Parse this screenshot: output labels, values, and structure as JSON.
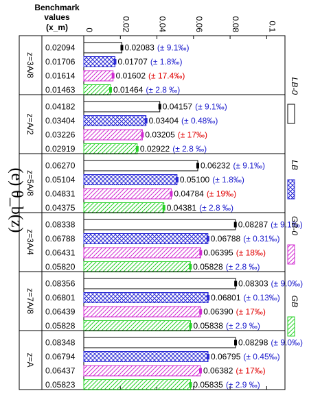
{
  "chart_data": {
    "type": "bar",
    "orientation": "horizontal",
    "title": "(e) θ_b(z)",
    "header": {
      "line1": "Benchmark",
      "line2": "values",
      "line3": "(x_m)"
    },
    "xlim": [
      0,
      0.11
    ],
    "xticks": [
      {
        "v": 0,
        "label": "0"
      },
      {
        "v": 0.02,
        "label": "0.02"
      },
      {
        "v": 0.04,
        "label": "0.04"
      },
      {
        "v": 0.06,
        "label": "0.06"
      },
      {
        "v": 0.08,
        "label": "0.08"
      },
      {
        "v": 0.1,
        "label": "0.1"
      }
    ],
    "series": [
      {
        "name": "LB-0",
        "color": "#000000",
        "pattern": "none"
      },
      {
        "name": "LB",
        "color": "#2a2ad4",
        "pattern": "crosshatch"
      },
      {
        "name": "GB-0",
        "color": "#d12ad1",
        "pattern": "diag"
      },
      {
        "name": "GB",
        "color": "#26d126",
        "pattern": "diag"
      }
    ],
    "groups": [
      {
        "label": "z=3A/8",
        "bars": [
          {
            "bench": "0.02094",
            "value": 0.02083,
            "label": "0.02083",
            "err": "(± 9.1‰)",
            "err_color": "#1a1acc"
          },
          {
            "bench": "0.01706",
            "value": 0.01707,
            "label": "0.01707",
            "err": "(± 1.8‰)",
            "err_color": "#1a1acc"
          },
          {
            "bench": "0.01614",
            "value": 0.01602,
            "label": "0.01602",
            "err": "(± 17.4‰)",
            "err_color": "#e00000"
          },
          {
            "bench": "0.01463",
            "value": 0.01464,
            "label": "0.01464",
            "err": "(± 2.8 ‰)",
            "err_color": "#1a1acc"
          }
        ]
      },
      {
        "label": "z=A/2",
        "bars": [
          {
            "bench": "0.04182",
            "value": 0.04157,
            "label": "0.04157",
            "err": "(± 9.1‰)",
            "err_color": "#1a1acc"
          },
          {
            "bench": "0.03404",
            "value": 0.03404,
            "label": "0.03404",
            "err": "(± 0.48‰)",
            "err_color": "#1a1acc"
          },
          {
            "bench": "0.03226",
            "value": 0.03205,
            "label": "0.03205",
            "err": "(± 17‰)",
            "err_color": "#e00000"
          },
          {
            "bench": "0.02919",
            "value": 0.02922,
            "label": "0.02922",
            "err": "(± 2.8 ‰)",
            "err_color": "#1a1acc"
          }
        ]
      },
      {
        "label": "z=5A/8",
        "bars": [
          {
            "bench": "0.06270",
            "value": 0.06232,
            "label": "0.06232",
            "err": "(± 9.1‰)",
            "err_color": "#1a1acc"
          },
          {
            "bench": "0.05104",
            "value": 0.051,
            "label": "0.05100",
            "err": "(± 1.8‰)",
            "err_color": "#1a1acc"
          },
          {
            "bench": "0.04831",
            "value": 0.04784,
            "label": "0.04784",
            "err": "(± 19‰)",
            "err_color": "#e00000"
          },
          {
            "bench": "0.04375",
            "value": 0.04381,
            "label": "0.04381",
            "err": "(± 2.8 ‰)",
            "err_color": "#1a1acc"
          }
        ]
      },
      {
        "label": "z=3A/4",
        "bars": [
          {
            "bench": "0.08338",
            "value": 0.08287,
            "label": "0.08287",
            "err": "(± 9.1‰)",
            "err_color": "#1a1acc"
          },
          {
            "bench": "0.06788",
            "value": 0.06788,
            "label": "0.06788",
            "err": "(± 0.31‰)",
            "err_color": "#1a1acc"
          },
          {
            "bench": "0.06431",
            "value": 0.06395,
            "label": "0.06395",
            "err": "(± 18‰)",
            "err_color": "#e00000"
          },
          {
            "bench": "0.05820",
            "value": 0.05828,
            "label": "0.05828",
            "err": "(± 2.8 ‰)",
            "err_color": "#1a1acc"
          }
        ]
      },
      {
        "label": "z=7A/8",
        "bars": [
          {
            "bench": "0.08356",
            "value": 0.08303,
            "label": "0.08303",
            "err": "(± 9.0‰)",
            "err_color": "#1a1acc"
          },
          {
            "bench": "0.06801",
            "value": 0.06801,
            "label": "0.06801",
            "err": "(± 0.13‰)",
            "err_color": "#1a1acc"
          },
          {
            "bench": "0.06439",
            "value": 0.0639,
            "label": "0.06390",
            "err": "(± 17‰)",
            "err_color": "#e00000"
          },
          {
            "bench": "0.05828",
            "value": 0.05838,
            "label": "0.05838",
            "err": "(± 2.9 ‰)",
            "err_color": "#1a1acc"
          }
        ]
      },
      {
        "label": "z=A",
        "bars": [
          {
            "bench": "0.08348",
            "value": 0.08298,
            "label": "0.08298",
            "err": "(± 9.0‰)",
            "err_color": "#1a1acc"
          },
          {
            "bench": "0.06794",
            "value": 0.06795,
            "label": "0.06795",
            "err": "(± 0.45‰)",
            "err_color": "#1a1acc"
          },
          {
            "bench": "0.06437",
            "value": 0.06382,
            "label": "0.06382",
            "err": "(± 17‰)",
            "err_color": "#e00000"
          },
          {
            "bench": "0.05823",
            "value": 0.05835,
            "label": "0.05835",
            "err": "(± 2.9 ‰)",
            "err_color": "#1a1acc"
          }
        ]
      }
    ],
    "legend_position": "right"
  }
}
